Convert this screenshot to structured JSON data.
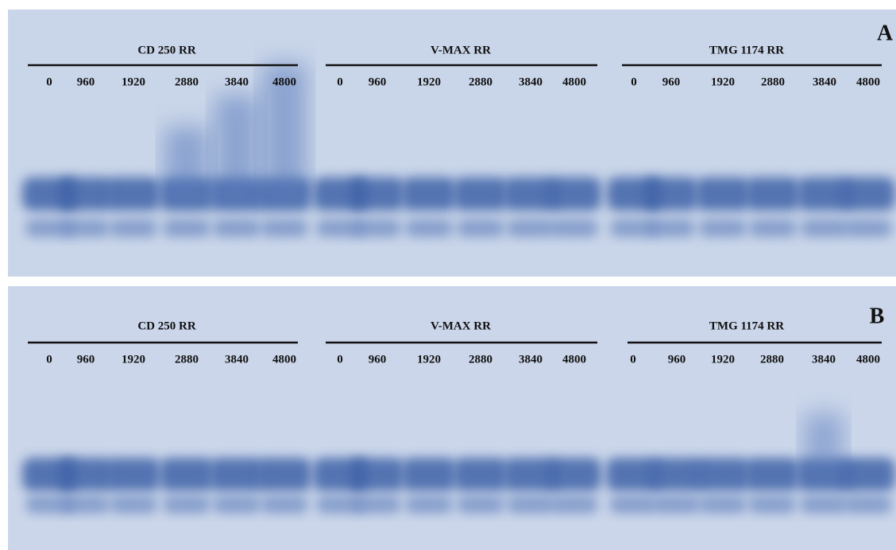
{
  "panels": [
    {
      "label": "A",
      "groups": [
        {
          "name": "CD 250 RR",
          "lanes": [
            0,
            960,
            1920,
            2880,
            3840,
            4800
          ]
        },
        {
          "name": "V-MAX RR",
          "lanes": [
            0,
            960,
            1920,
            2880,
            3840,
            4800
          ]
        },
        {
          "name": "TMG 1174 RR",
          "lanes": [
            0,
            960,
            1920,
            2880,
            3840,
            4800
          ]
        }
      ]
    },
    {
      "label": "B",
      "groups": [
        {
          "name": "CD 250 RR",
          "lanes": [
            0,
            960,
            1920,
            2880,
            3840,
            4800
          ]
        },
        {
          "name": "V-MAX RR",
          "lanes": [
            0,
            960,
            1920,
            2880,
            3840,
            4800
          ]
        },
        {
          "name": "TMG 1174 RR",
          "lanes": [
            0,
            960,
            1920,
            2880,
            3840,
            4800
          ]
        }
      ]
    }
  ]
}
